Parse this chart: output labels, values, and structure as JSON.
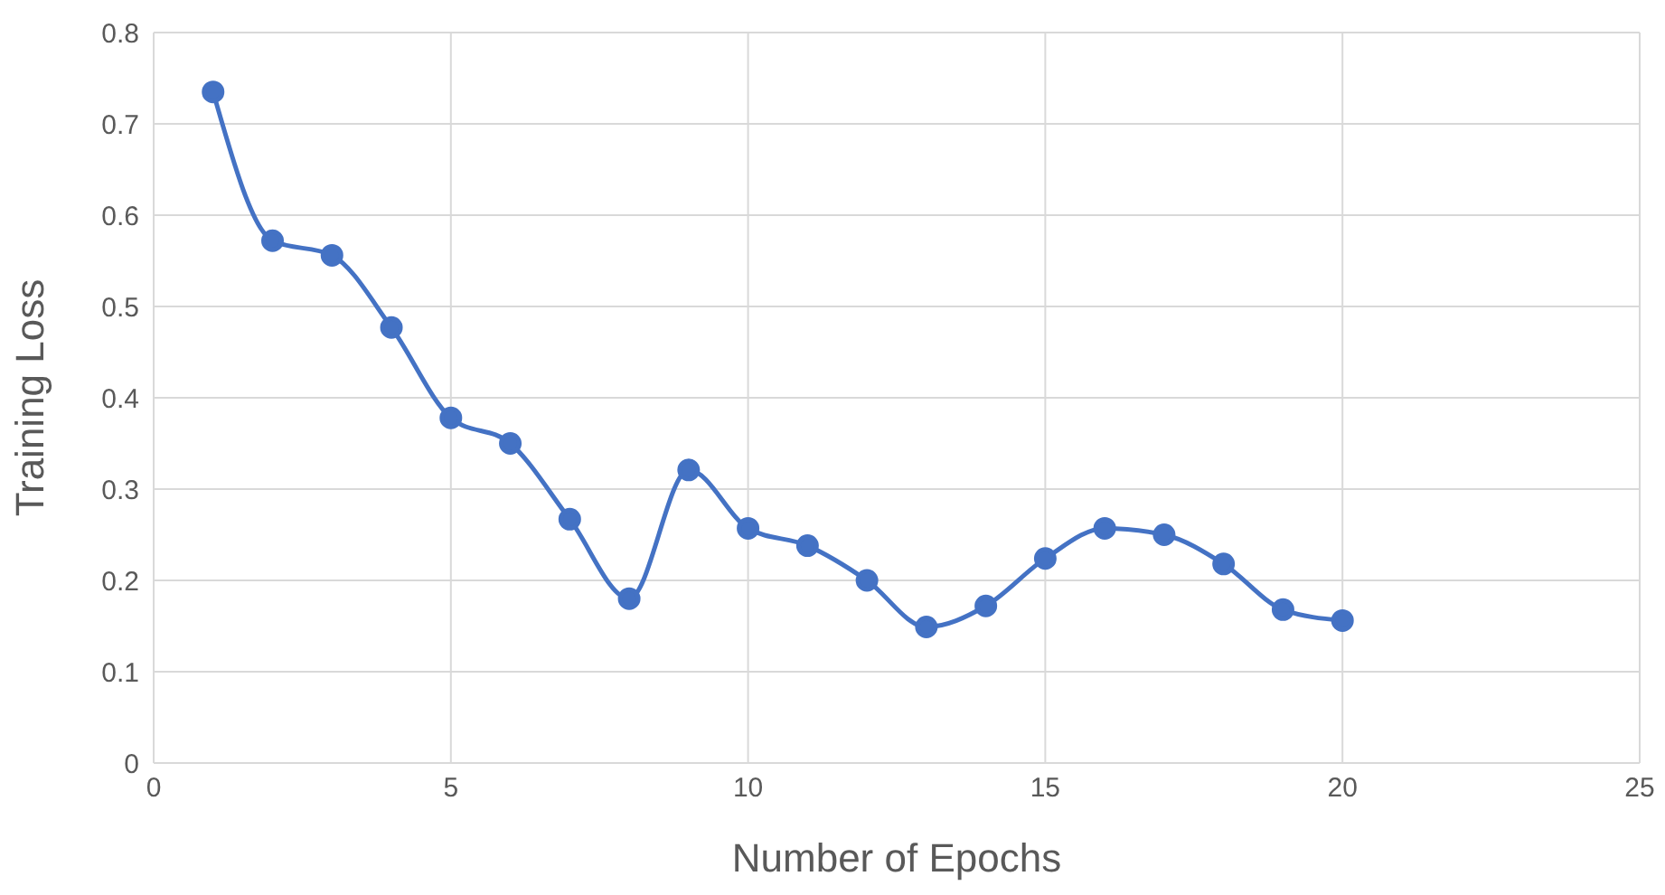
{
  "chart_data": {
    "type": "line",
    "xlabel": "Number of Epochs",
    "ylabel": "Training Loss",
    "x": [
      1,
      2,
      3,
      4,
      5,
      6,
      7,
      8,
      9,
      10,
      11,
      12,
      13,
      14,
      15,
      16,
      17,
      18,
      19,
      20
    ],
    "series": [
      {
        "color": "#4472c4",
        "values": [
          0.735,
          0.572,
          0.556,
          0.477,
          0.378,
          0.35,
          0.267,
          0.18,
          0.321,
          0.257,
          0.238,
          0.2,
          0.149,
          0.172,
          0.224,
          0.257,
          0.25,
          0.218,
          0.168,
          0.156
        ]
      }
    ],
    "xlim": [
      0,
      25
    ],
    "xticks": [
      0,
      5,
      10,
      15,
      20,
      25
    ],
    "ylim": [
      0,
      0.8
    ],
    "yticks": [
      0,
      0.1,
      0.2,
      0.3,
      0.4,
      0.5,
      0.6,
      0.7,
      0.8
    ],
    "grid": true,
    "legend": false,
    "marker": "circle",
    "line_style": "solid"
  }
}
